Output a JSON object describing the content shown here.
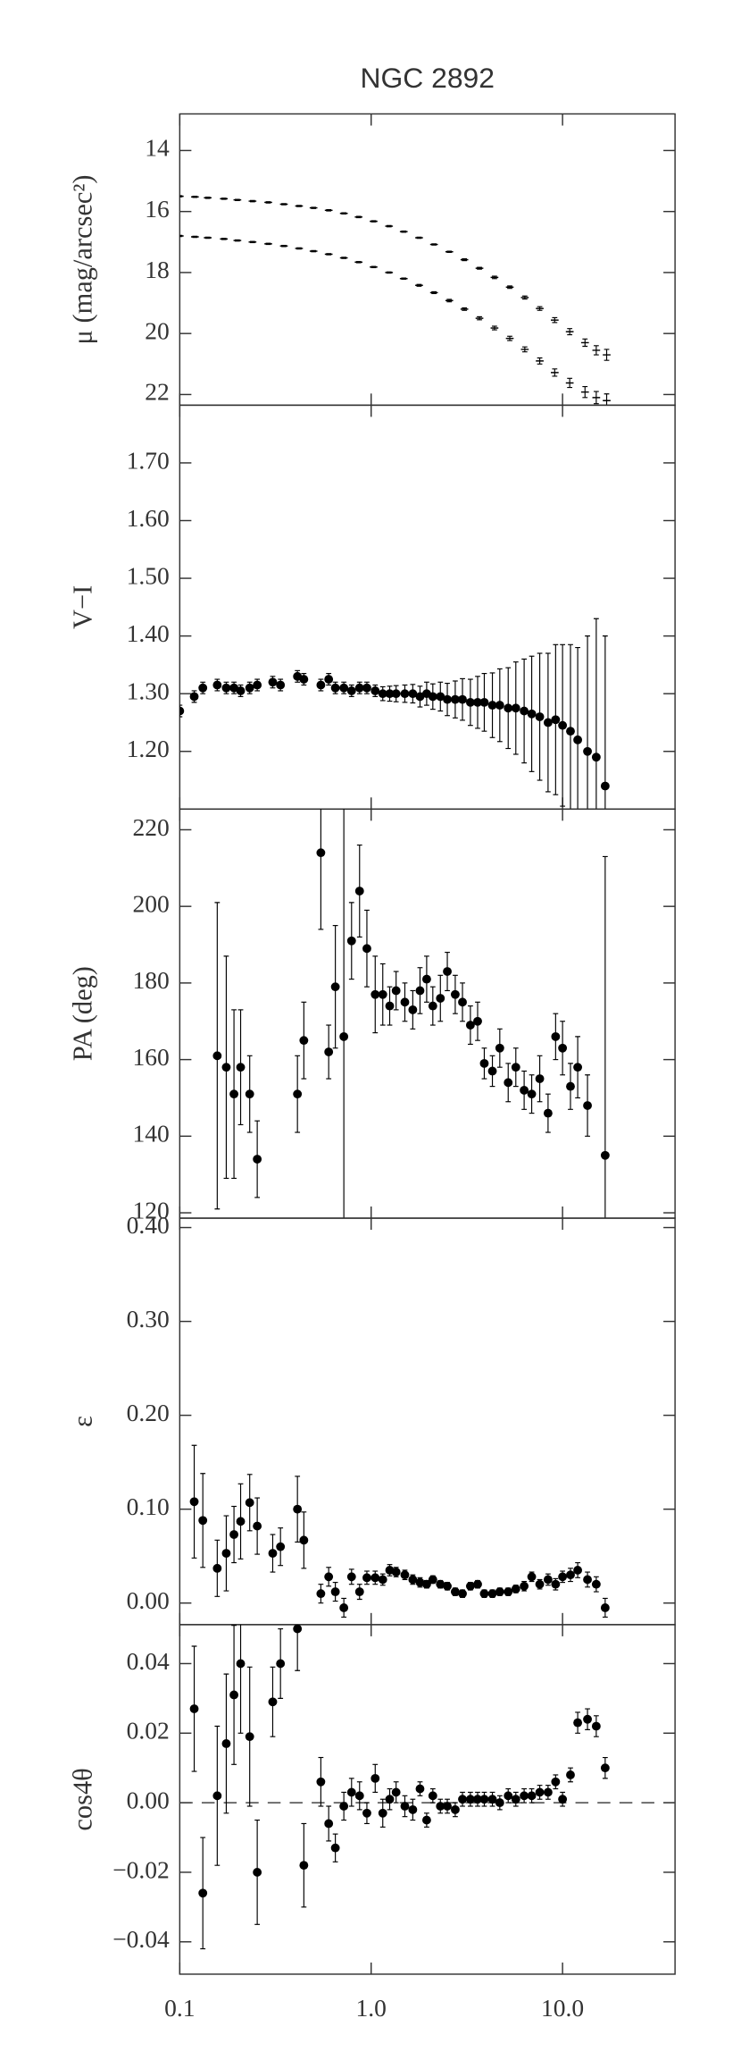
{
  "chart_data": [
    {
      "type": "scatter",
      "title": "NGC 2892",
      "ylabel": "μ (mag/arcsec²)",
      "marker": "dash",
      "color": "#000000",
      "xlim": [
        0.1,
        38.7
      ],
      "log_x": true,
      "ylim": [
        22.35,
        12.8
      ],
      "yticks": [
        14,
        16,
        18,
        20,
        22
      ],
      "x": [
        0.1,
        0.12,
        0.14,
        0.17,
        0.2,
        0.24,
        0.29,
        0.35,
        0.42,
        0.5,
        0.6,
        0.72,
        0.86,
        1.03,
        1.24,
        1.48,
        1.78,
        2.13,
        2.56,
        3.07,
        3.68,
        4.41,
        5.3,
        6.35,
        7.6,
        9.1,
        10.9,
        13.1,
        15.0,
        17.0
      ],
      "series": [
        {
          "values": [
            15.5,
            15.52,
            15.55,
            15.58,
            15.62,
            15.66,
            15.7,
            15.76,
            15.82,
            15.88,
            15.96,
            16.06,
            16.18,
            16.32,
            16.48,
            16.66,
            16.86,
            17.08,
            17.32,
            17.58,
            17.86,
            18.16,
            18.48,
            18.82,
            19.18,
            19.56,
            19.94,
            20.3,
            20.55,
            20.7
          ],
          "errors": [
            0.02,
            0.02,
            0.02,
            0.02,
            0.02,
            0.02,
            0.02,
            0.02,
            0.02,
            0.02,
            0.02,
            0.02,
            0.02,
            0.02,
            0.02,
            0.02,
            0.02,
            0.02,
            0.02,
            0.03,
            0.03,
            0.04,
            0.04,
            0.05,
            0.06,
            0.08,
            0.1,
            0.12,
            0.15,
            0.18
          ]
        },
        {
          "values": [
            16.8,
            16.83,
            16.86,
            16.9,
            16.95,
            17.0,
            17.06,
            17.13,
            17.21,
            17.3,
            17.4,
            17.52,
            17.66,
            17.82,
            18.0,
            18.2,
            18.42,
            18.66,
            18.92,
            19.2,
            19.5,
            19.82,
            20.16,
            20.52,
            20.9,
            21.28,
            21.62,
            21.92,
            22.1,
            22.2
          ],
          "errors": [
            0.02,
            0.02,
            0.02,
            0.02,
            0.02,
            0.02,
            0.02,
            0.02,
            0.02,
            0.02,
            0.02,
            0.02,
            0.02,
            0.02,
            0.02,
            0.02,
            0.03,
            0.03,
            0.04,
            0.04,
            0.05,
            0.06,
            0.07,
            0.08,
            0.1,
            0.12,
            0.15,
            0.18,
            0.2,
            0.22
          ]
        }
      ]
    },
    {
      "type": "scatter",
      "ylabel": "V−I",
      "marker": "dot",
      "color": "#000000",
      "xlim": [
        0.1,
        38.7
      ],
      "log_x": true,
      "ylim": [
        1.1,
        1.8
      ],
      "yticks": [
        {
          "value": 1.2,
          "label": "1.20"
        },
        {
          "value": 1.3,
          "label": "1.30"
        },
        {
          "value": 1.4,
          "label": "1.40"
        },
        {
          "value": 1.5,
          "label": "1.50"
        },
        {
          "value": 1.6,
          "label": "1.60"
        },
        {
          "value": 1.7,
          "label": "1.70"
        }
      ],
      "x": [
        0.1,
        0.119,
        0.132,
        0.157,
        0.175,
        0.192,
        0.208,
        0.232,
        0.254,
        0.306,
        0.336,
        0.412,
        0.445,
        0.546,
        0.6,
        0.65,
        0.72,
        0.79,
        0.87,
        0.95,
        1.05,
        1.15,
        1.25,
        1.35,
        1.5,
        1.65,
        1.8,
        1.95,
        2.1,
        2.3,
        2.5,
        2.75,
        3.0,
        3.3,
        3.6,
        3.9,
        4.3,
        4.7,
        5.2,
        5.7,
        6.3,
        6.9,
        7.6,
        8.4,
        9.2,
        10.0,
        11.0,
        12.0,
        13.5,
        15.0,
        16.7
      ],
      "series": [
        {
          "values": [
            1.27,
            1.295,
            1.31,
            1.315,
            1.31,
            1.31,
            1.305,
            1.31,
            1.315,
            1.32,
            1.315,
            1.33,
            1.325,
            1.315,
            1.325,
            1.31,
            1.31,
            1.305,
            1.31,
            1.31,
            1.305,
            1.3,
            1.3,
            1.3,
            1.3,
            1.3,
            1.295,
            1.3,
            1.295,
            1.295,
            1.29,
            1.29,
            1.29,
            1.285,
            1.285,
            1.285,
            1.28,
            1.28,
            1.275,
            1.275,
            1.27,
            1.265,
            1.26,
            1.25,
            1.255,
            1.245,
            1.235,
            1.22,
            1.2,
            1.19,
            1.14
          ],
          "errors": [
            0.01,
            0.01,
            0.01,
            0.01,
            0.01,
            0.01,
            0.01,
            0.01,
            0.01,
            0.01,
            0.01,
            0.01,
            0.01,
            0.01,
            0.01,
            0.01,
            0.01,
            0.01,
            0.01,
            0.01,
            0.01,
            0.012,
            0.013,
            0.014,
            0.015,
            0.016,
            0.018,
            0.02,
            0.022,
            0.025,
            0.028,
            0.032,
            0.036,
            0.04,
            0.045,
            0.05,
            0.056,
            0.063,
            0.07,
            0.08,
            0.09,
            0.1,
            0.11,
            0.12,
            0.13,
            0.14,
            0.15,
            0.16,
            0.2,
            0.24,
            0.26
          ]
        }
      ]
    },
    {
      "type": "scatter",
      "ylabel": "PA (deg)",
      "marker": "dot",
      "color": "#000000",
      "xlim": [
        0.1,
        38.7
      ],
      "log_x": true,
      "ylim": [
        118.6,
        225.4
      ],
      "yticks": [
        120,
        140,
        160,
        180,
        200,
        220
      ],
      "x": [
        0.157,
        0.175,
        0.192,
        0.208,
        0.232,
        0.254,
        0.412,
        0.445,
        0.546,
        0.6,
        0.65,
        0.72,
        0.79,
        0.87,
        0.95,
        1.05,
        1.15,
        1.25,
        1.35,
        1.5,
        1.65,
        1.8,
        1.95,
        2.1,
        2.3,
        2.5,
        2.75,
        3.0,
        3.3,
        3.6,
        3.9,
        4.3,
        4.7,
        5.2,
        5.7,
        6.3,
        6.9,
        7.6,
        8.4,
        9.2,
        10.0,
        11.0,
        12.0,
        13.5,
        16.7
      ],
      "series": [
        {
          "values": [
            161,
            158,
            151,
            158,
            151,
            134,
            151,
            165,
            214,
            162,
            179,
            166,
            191,
            204,
            189,
            177,
            177,
            174,
            178,
            175,
            173,
            178,
            181,
            174,
            176,
            183,
            177,
            175,
            169,
            170,
            159,
            157,
            163,
            154,
            158,
            152,
            151,
            155,
            146,
            166,
            163,
            153,
            158,
            148,
            135
          ],
          "errors": [
            40,
            29,
            22,
            15,
            10,
            10,
            10,
            10,
            20,
            7,
            16,
            60,
            10,
            12,
            10,
            10,
            8,
            5,
            5,
            5,
            5,
            6,
            6,
            5,
            6,
            5,
            5,
            5,
            5,
            5,
            4,
            4,
            5,
            5,
            5,
            5,
            5,
            6,
            5,
            6,
            7,
            6,
            8,
            8,
            78
          ]
        }
      ]
    },
    {
      "type": "scatter",
      "ylabel": "ε",
      "marker": "dot",
      "color": "#000000",
      "xlim": [
        0.1,
        38.7
      ],
      "log_x": true,
      "ylim": [
        -0.023,
        0.41
      ],
      "yticks": [
        {
          "value": 0,
          "label": "0.00"
        },
        {
          "value": 0.1,
          "label": "0.10"
        },
        {
          "value": 0.2,
          "label": "0.20"
        },
        {
          "value": 0.3,
          "label": "0.30"
        },
        {
          "value": 0.4,
          "label": "0.40"
        }
      ],
      "x": [
        0.119,
        0.132,
        0.157,
        0.175,
        0.192,
        0.208,
        0.232,
        0.254,
        0.306,
        0.336,
        0.412,
        0.445,
        0.546,
        0.6,
        0.65,
        0.72,
        0.79,
        0.87,
        0.95,
        1.05,
        1.15,
        1.25,
        1.35,
        1.5,
        1.65,
        1.8,
        1.95,
        2.1,
        2.3,
        2.5,
        2.75,
        3.0,
        3.3,
        3.6,
        3.9,
        4.3,
        4.7,
        5.2,
        5.7,
        6.3,
        6.9,
        7.6,
        8.4,
        9.2,
        10.0,
        11.0,
        12.0,
        13.5,
        15.0,
        16.7
      ],
      "series": [
        {
          "values": [
            0.108,
            0.088,
            0.037,
            0.053,
            0.073,
            0.087,
            0.107,
            0.082,
            0.053,
            0.06,
            0.1,
            0.067,
            0.01,
            0.028,
            0.012,
            -0.005,
            0.028,
            0.012,
            0.027,
            0.027,
            0.025,
            0.035,
            0.033,
            0.03,
            0.025,
            0.022,
            0.02,
            0.025,
            0.02,
            0.018,
            0.012,
            0.01,
            0.018,
            0.02,
            0.01,
            0.01,
            0.012,
            0.012,
            0.015,
            0.018,
            0.028,
            0.02,
            0.025,
            0.02,
            0.028,
            0.03,
            0.035,
            0.025,
            0.02,
            -0.005
          ],
          "errors": [
            0.06,
            0.05,
            0.03,
            0.04,
            0.03,
            0.04,
            0.03,
            0.03,
            0.02,
            0.02,
            0.035,
            0.03,
            0.01,
            0.01,
            0.01,
            0.01,
            0.008,
            0.008,
            0.007,
            0.007,
            0.006,
            0.006,
            0.005,
            0.005,
            0.005,
            0.005,
            0.004,
            0.004,
            0.004,
            0.004,
            0.004,
            0.004,
            0.004,
            0.004,
            0.004,
            0.004,
            0.004,
            0.004,
            0.004,
            0.005,
            0.005,
            0.005,
            0.006,
            0.006,
            0.006,
            0.007,
            0.008,
            0.008,
            0.008,
            0.01
          ]
        }
      ]
    },
    {
      "type": "scatter",
      "ylabel": "cos4θ",
      "marker": "dot",
      "color": "#000000",
      "xlim": [
        0.1,
        38.7
      ],
      "log_x": true,
      "ylim": [
        -0.0493,
        0.0512
      ],
      "reference_line": 0,
      "yticks": [
        {
          "value": -0.04,
          "label": "−0.04"
        },
        {
          "value": -0.02,
          "label": "−0.02"
        },
        {
          "value": 0,
          "label": "0.00"
        },
        {
          "value": 0.02,
          "label": "0.02"
        },
        {
          "value": 0.04,
          "label": "0.04"
        }
      ],
      "xticks": [
        0.1,
        {
          "value": 1,
          "label": "1.0"
        },
        {
          "value": 10,
          "label": "10.0"
        }
      ],
      "x": [
        0.119,
        0.132,
        0.157,
        0.175,
        0.192,
        0.208,
        0.232,
        0.254,
        0.306,
        0.336,
        0.412,
        0.445,
        0.546,
        0.6,
        0.65,
        0.72,
        0.79,
        0.87,
        0.95,
        1.05,
        1.15,
        1.25,
        1.35,
        1.5,
        1.65,
        1.8,
        1.95,
        2.1,
        2.3,
        2.5,
        2.75,
        3.0,
        3.3,
        3.6,
        3.9,
        4.3,
        4.7,
        5.2,
        5.7,
        6.3,
        6.9,
        7.6,
        8.4,
        9.2,
        10.0,
        11.0,
        12.0,
        13.5,
        15.0,
        16.7
      ],
      "series": [
        {
          "values": [
            0.027,
            -0.026,
            0.002,
            0.017,
            0.031,
            0.04,
            0.019,
            -0.02,
            0.029,
            0.04,
            0.05,
            -0.018,
            0.006,
            -0.006,
            -0.013,
            -0.001,
            0.003,
            0.002,
            -0.003,
            0.007,
            -0.003,
            0.001,
            0.003,
            -0.001,
            -0.002,
            0.004,
            -0.005,
            0.002,
            -0.001,
            -0.001,
            -0.002,
            0.001,
            0.001,
            0.001,
            0.001,
            0.001,
            0.0,
            0.002,
            0.001,
            0.002,
            0.002,
            0.003,
            0.003,
            0.006,
            0.001,
            0.008,
            0.023,
            0.024,
            0.022,
            0.01
          ],
          "errors": [
            0.018,
            0.016,
            0.02,
            0.02,
            0.02,
            0.02,
            0.02,
            0.015,
            0.01,
            0.01,
            0.012,
            0.012,
            0.007,
            0.005,
            0.004,
            0.004,
            0.004,
            0.004,
            0.003,
            0.004,
            0.004,
            0.003,
            0.003,
            0.003,
            0.003,
            0.002,
            0.002,
            0.002,
            0.002,
            0.002,
            0.002,
            0.002,
            0.002,
            0.002,
            0.002,
            0.002,
            0.002,
            0.002,
            0.002,
            0.002,
            0.002,
            0.002,
            0.002,
            0.002,
            0.002,
            0.002,
            0.003,
            0.003,
            0.003,
            0.003
          ]
        }
      ]
    }
  ]
}
